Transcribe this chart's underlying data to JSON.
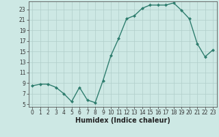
{
  "x": [
    0,
    1,
    2,
    3,
    4,
    5,
    6,
    7,
    8,
    9,
    10,
    11,
    12,
    13,
    14,
    15,
    16,
    17,
    18,
    19,
    20,
    21,
    22,
    23
  ],
  "y": [
    8.5,
    8.8,
    8.8,
    8.2,
    7.0,
    5.5,
    8.2,
    5.8,
    5.3,
    9.5,
    14.2,
    17.5,
    21.2,
    21.8,
    23.2,
    23.8,
    23.8,
    23.8,
    24.2,
    22.8,
    21.2,
    16.5,
    14.0,
    15.3
  ],
  "line_color": "#2e7d6e",
  "marker": "D",
  "marker_size": 2.0,
  "linewidth": 1.0,
  "xlabel": "Humidex (Indice chaleur)",
  "xlim": [
    -0.5,
    23.5
  ],
  "ylim": [
    4.5,
    24.5
  ],
  "yticks": [
    5,
    7,
    9,
    11,
    13,
    15,
    17,
    19,
    21,
    23
  ],
  "xticks": [
    0,
    1,
    2,
    3,
    4,
    5,
    6,
    7,
    8,
    9,
    10,
    11,
    12,
    13,
    14,
    15,
    16,
    17,
    18,
    19,
    20,
    21,
    22,
    23
  ],
  "bg_color": "#cde8e4",
  "grid_color": "#b0cdc9",
  "tick_fontsize": 5.5,
  "xlabel_fontsize": 7.0
}
